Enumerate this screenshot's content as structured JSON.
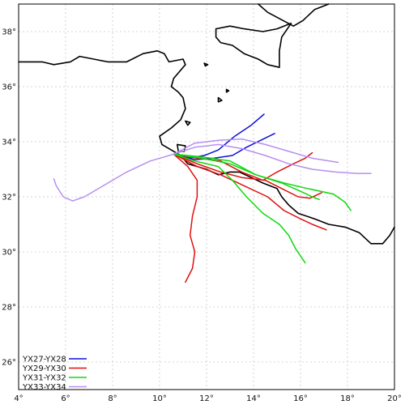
{
  "map": {
    "lon_range": [
      4,
      20
    ],
    "lat_range": [
      25,
      39
    ],
    "x_ticks": [
      {
        "value": 4,
        "label": "4°"
      },
      {
        "value": 6,
        "label": "6°"
      },
      {
        "value": 8,
        "label": "8°"
      },
      {
        "value": 10,
        "label": "10°"
      },
      {
        "value": 12,
        "label": "12°"
      },
      {
        "value": 14,
        "label": "14°"
      },
      {
        "value": 16,
        "label": "16°"
      },
      {
        "value": 18,
        "label": "18°"
      },
      {
        "value": 20,
        "label": "20°"
      }
    ],
    "y_ticks": [
      {
        "value": 26,
        "label": "26°"
      },
      {
        "value": 28,
        "label": "28°"
      },
      {
        "value": 30,
        "label": "30°"
      },
      {
        "value": 32,
        "label": "32°"
      },
      {
        "value": 34,
        "label": "34°"
      },
      {
        "value": 36,
        "label": "36°"
      },
      {
        "value": 38,
        "label": "38°"
      }
    ],
    "grid": true,
    "legend_position": "bottom-left",
    "coastline_color": "#000000",
    "coastlines": {
      "main": [
        [
          4,
          36.9
        ],
        [
          5.0,
          36.9
        ],
        [
          5.5,
          36.8
        ],
        [
          6.2,
          36.9
        ],
        [
          6.6,
          37.1
        ],
        [
          7.2,
          37.0
        ],
        [
          7.8,
          36.9
        ],
        [
          8.6,
          36.9
        ],
        [
          9.3,
          37.2
        ],
        [
          9.9,
          37.3
        ],
        [
          10.2,
          37.2
        ],
        [
          10.4,
          36.9
        ],
        [
          11.0,
          37.0
        ],
        [
          11.1,
          36.8
        ],
        [
          10.8,
          36.5
        ],
        [
          10.6,
          36.3
        ],
        [
          10.5,
          36.0
        ],
        [
          10.8,
          35.8
        ],
        [
          11.0,
          35.6
        ],
        [
          11.1,
          35.2
        ],
        [
          10.9,
          34.8
        ],
        [
          10.5,
          34.5
        ],
        [
          10.0,
          34.2
        ],
        [
          10.1,
          33.9
        ],
        [
          10.5,
          33.7
        ],
        [
          10.9,
          33.5
        ],
        [
          11.2,
          33.2
        ],
        [
          11.6,
          33.1
        ],
        [
          12.0,
          33.0
        ],
        [
          12.5,
          32.8
        ],
        [
          13.0,
          32.9
        ],
        [
          13.4,
          32.9
        ],
        [
          13.9,
          32.7
        ],
        [
          14.4,
          32.5
        ],
        [
          15.0,
          32.3
        ],
        [
          15.2,
          32.0
        ],
        [
          15.5,
          31.7
        ],
        [
          15.9,
          31.4
        ],
        [
          16.6,
          31.2
        ],
        [
          17.2,
          31.0
        ],
        [
          17.9,
          30.9
        ],
        [
          18.5,
          30.7
        ],
        [
          19.0,
          30.3
        ],
        [
          19.5,
          30.3
        ],
        [
          19.8,
          30.6
        ],
        [
          20,
          30.9
        ]
      ],
      "sicily": [
        [
          12.4,
          38.1
        ],
        [
          13.0,
          38.2
        ],
        [
          13.6,
          38.1
        ],
        [
          14.4,
          38.0
        ],
        [
          15.0,
          38.1
        ],
        [
          15.6,
          38.3
        ],
        [
          15.2,
          37.8
        ],
        [
          15.1,
          37.3
        ],
        [
          15.1,
          36.7
        ],
        [
          14.6,
          36.8
        ],
        [
          14.2,
          37.0
        ],
        [
          13.6,
          37.2
        ],
        [
          13.1,
          37.5
        ],
        [
          12.6,
          37.6
        ],
        [
          12.4,
          37.8
        ],
        [
          12.4,
          38.1
        ]
      ],
      "italy_top": [
        [
          14.2,
          39
        ],
        [
          14.6,
          38.7
        ],
        [
          15.7,
          38.2
        ],
        [
          16.1,
          38.4
        ],
        [
          16.6,
          38.8
        ],
        [
          17.2,
          39
        ]
      ],
      "tiny_island_a": [
        [
          11.9,
          36.85
        ],
        [
          12.05,
          36.8
        ],
        [
          11.95,
          36.75
        ],
        [
          11.9,
          36.85
        ]
      ],
      "tiny_island_b": [
        [
          12.5,
          35.6
        ],
        [
          12.65,
          35.5
        ],
        [
          12.5,
          35.45
        ],
        [
          12.5,
          35.6
        ]
      ],
      "tiny_island_c": [
        [
          12.85,
          35.9
        ],
        [
          12.95,
          35.85
        ],
        [
          12.85,
          35.8
        ],
        [
          12.85,
          35.9
        ]
      ],
      "djerba": [
        [
          10.75,
          33.9
        ],
        [
          11.1,
          33.85
        ],
        [
          11.05,
          33.65
        ],
        [
          10.8,
          33.65
        ],
        [
          10.75,
          33.9
        ]
      ],
      "kerkennah": [
        [
          11.1,
          34.75
        ],
        [
          11.3,
          34.7
        ],
        [
          11.2,
          34.6
        ],
        [
          11.1,
          34.75
        ]
      ]
    }
  },
  "legend": [
    {
      "label": "YX27-YX28",
      "color": "#1010d8"
    },
    {
      "label": "YX29-YX30",
      "color": "#e01010"
    },
    {
      "label": "YX31-YX32",
      "color": "#10d810"
    },
    {
      "label": "YX33-YX34",
      "color": "#b78ff0"
    }
  ],
  "chart_data": {
    "type": "line",
    "x_unit": "longitude (degrees E)",
    "y_unit": "latitude (degrees N)",
    "xlim": [
      4,
      20
    ],
    "ylim": [
      25,
      39
    ],
    "series": [
      {
        "name": "YX27-YX28",
        "color": "#1010d8",
        "tracks": [
          [
            [
              10.6,
              33.55
            ],
            [
              11.2,
              33.4
            ],
            [
              11.9,
              33.5
            ],
            [
              12.5,
              33.7
            ],
            [
              13.2,
              34.2
            ],
            [
              13.9,
              34.6
            ],
            [
              14.45,
              35.0
            ]
          ],
          [
            [
              10.6,
              33.55
            ],
            [
              11.5,
              33.35
            ],
            [
              12.3,
              33.4
            ],
            [
              13.1,
              33.5
            ],
            [
              13.7,
              33.8
            ],
            [
              14.3,
              34.05
            ],
            [
              14.9,
              34.3
            ]
          ]
        ]
      },
      {
        "name": "YX29-YX30",
        "color": "#e01010",
        "tracks": [
          [
            [
              10.6,
              33.55
            ],
            [
              11.2,
              33.1
            ],
            [
              11.6,
              32.6
            ],
            [
              11.6,
              32.0
            ],
            [
              11.4,
              31.3
            ],
            [
              11.3,
              30.6
            ],
            [
              11.5,
              30.0
            ],
            [
              11.4,
              29.4
            ],
            [
              11.1,
              28.9
            ]
          ],
          [
            [
              10.6,
              33.55
            ],
            [
              11.6,
              33.1
            ],
            [
              12.6,
              32.8
            ],
            [
              13.6,
              32.4
            ],
            [
              14.6,
              32.0
            ],
            [
              15.3,
              31.5
            ],
            [
              16.0,
              31.2
            ],
            [
              16.5,
              31.0
            ],
            [
              17.1,
              30.8
            ]
          ],
          [
            [
              10.6,
              33.55
            ],
            [
              11.6,
              33.2
            ],
            [
              12.6,
              32.9
            ],
            [
              13.5,
              32.7
            ],
            [
              14.5,
              32.6
            ],
            [
              15.2,
              32.3
            ],
            [
              15.9,
              32.0
            ],
            [
              16.4,
              31.95
            ],
            [
              16.9,
              32.15
            ]
          ],
          [
            [
              10.6,
              33.55
            ],
            [
              11.6,
              33.4
            ],
            [
              12.6,
              33.3
            ],
            [
              13.5,
              32.9
            ],
            [
              14.4,
              32.6
            ],
            [
              15.0,
              32.9
            ],
            [
              15.7,
              33.2
            ],
            [
              16.2,
              33.4
            ],
            [
              16.5,
              33.6
            ]
          ]
        ]
      },
      {
        "name": "YX31-YX32",
        "color": "#10d810",
        "tracks": [
          [
            [
              10.6,
              33.55
            ],
            [
              11.5,
              33.3
            ],
            [
              12.5,
              33.1
            ],
            [
              13.1,
              32.6
            ],
            [
              13.7,
              32.0
            ],
            [
              14.4,
              31.4
            ],
            [
              15.1,
              31.0
            ],
            [
              15.5,
              30.6
            ],
            [
              15.8,
              30.1
            ],
            [
              16.2,
              29.6
            ]
          ],
          [
            [
              10.6,
              33.55
            ],
            [
              11.8,
              33.4
            ],
            [
              13.0,
              33.2
            ],
            [
              14.1,
              32.8
            ],
            [
              15.3,
              32.5
            ],
            [
              16.3,
              32.3
            ],
            [
              17.4,
              32.1
            ],
            [
              17.9,
              31.8
            ],
            [
              18.15,
              31.5
            ]
          ],
          [
            [
              10.6,
              33.55
            ],
            [
              11.8,
              33.45
            ],
            [
              13.0,
              33.3
            ],
            [
              14.1,
              32.8
            ],
            [
              15.2,
              32.5
            ],
            [
              16.0,
              32.2
            ],
            [
              16.5,
              32.0
            ],
            [
              16.8,
              31.9
            ]
          ]
        ]
      },
      {
        "name": "YX33-YX34",
        "color": "#b78ff0",
        "tracks": [
          [
            [
              10.6,
              33.55
            ],
            [
              9.6,
              33.3
            ],
            [
              8.6,
              32.9
            ],
            [
              7.6,
              32.4
            ],
            [
              6.8,
              32.0
            ],
            [
              6.3,
              31.85
            ],
            [
              5.9,
              32.0
            ],
            [
              5.6,
              32.4
            ],
            [
              5.5,
              32.65
            ]
          ],
          [
            [
              10.6,
              33.55
            ],
            [
              11.5,
              33.8
            ],
            [
              12.5,
              33.9
            ],
            [
              13.5,
              33.75
            ],
            [
              14.5,
              33.5
            ],
            [
              15.5,
              33.2
            ],
            [
              16.5,
              33.0
            ],
            [
              17.5,
              32.9
            ],
            [
              18.4,
              32.85
            ],
            [
              19.0,
              32.85
            ]
          ],
          [
            [
              10.6,
              33.55
            ],
            [
              11.5,
              33.95
            ],
            [
              12.5,
              34.05
            ],
            [
              13.5,
              34.1
            ],
            [
              14.5,
              33.9
            ],
            [
              15.5,
              33.65
            ],
            [
              16.5,
              33.4
            ],
            [
              17.6,
              33.25
            ]
          ]
        ]
      }
    ]
  }
}
